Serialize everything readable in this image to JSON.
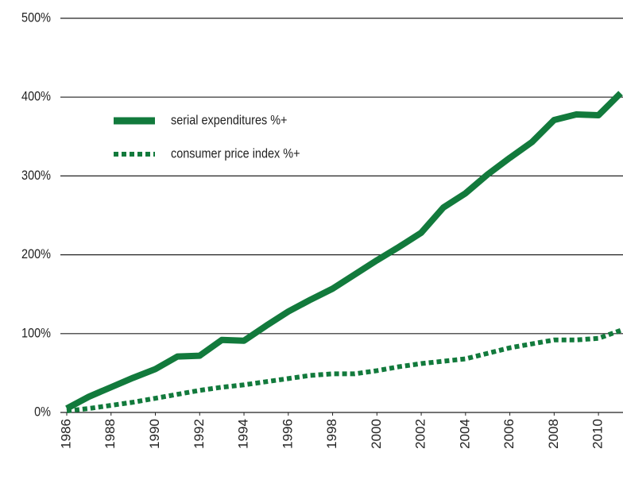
{
  "chart_data": {
    "type": "line",
    "x": [
      1986,
      1987,
      1988,
      1989,
      1990,
      1991,
      1992,
      1993,
      1994,
      1995,
      1996,
      1997,
      1998,
      1999,
      2000,
      2001,
      2002,
      2003,
      2004,
      2005,
      2006,
      2007,
      2008,
      2009,
      2010,
      2011
    ],
    "series": [
      {
        "name": "serial expenditures %+",
        "color": "#127a3c",
        "style": "solid",
        "values": [
          5,
          20,
          32,
          44,
          55,
          71,
          72,
          92,
          91,
          110,
          128,
          143,
          157,
          175,
          193,
          210,
          228,
          260,
          278,
          302,
          323,
          343,
          371,
          378,
          377,
          405
        ]
      },
      {
        "name": "consumer price index %+",
        "color": "#127a3c",
        "style": "dotted",
        "values": [
          2,
          5,
          9,
          13,
          18,
          23,
          28,
          32,
          35,
          39,
          43,
          47,
          49,
          49,
          53,
          58,
          62,
          65,
          68,
          75,
          82,
          87,
          92,
          92,
          94,
          104
        ]
      }
    ],
    "xlim": [
      1986,
      2011
    ],
    "xticks": [
      1986,
      1988,
      1990,
      1992,
      1994,
      1996,
      1998,
      2000,
      2002,
      2004,
      2006,
      2008,
      2010
    ],
    "ylim": [
      0,
      500
    ],
    "yticks": [
      {
        "value": 0,
        "label": "0%"
      },
      {
        "value": 100,
        "label": "100%"
      },
      {
        "value": 200,
        "label": "200%"
      },
      {
        "value": 300,
        "label": "300%"
      },
      {
        "value": 400,
        "label": "400%"
      },
      {
        "value": 500,
        "label": "500%"
      }
    ],
    "grid": true,
    "legend": "upper left"
  }
}
